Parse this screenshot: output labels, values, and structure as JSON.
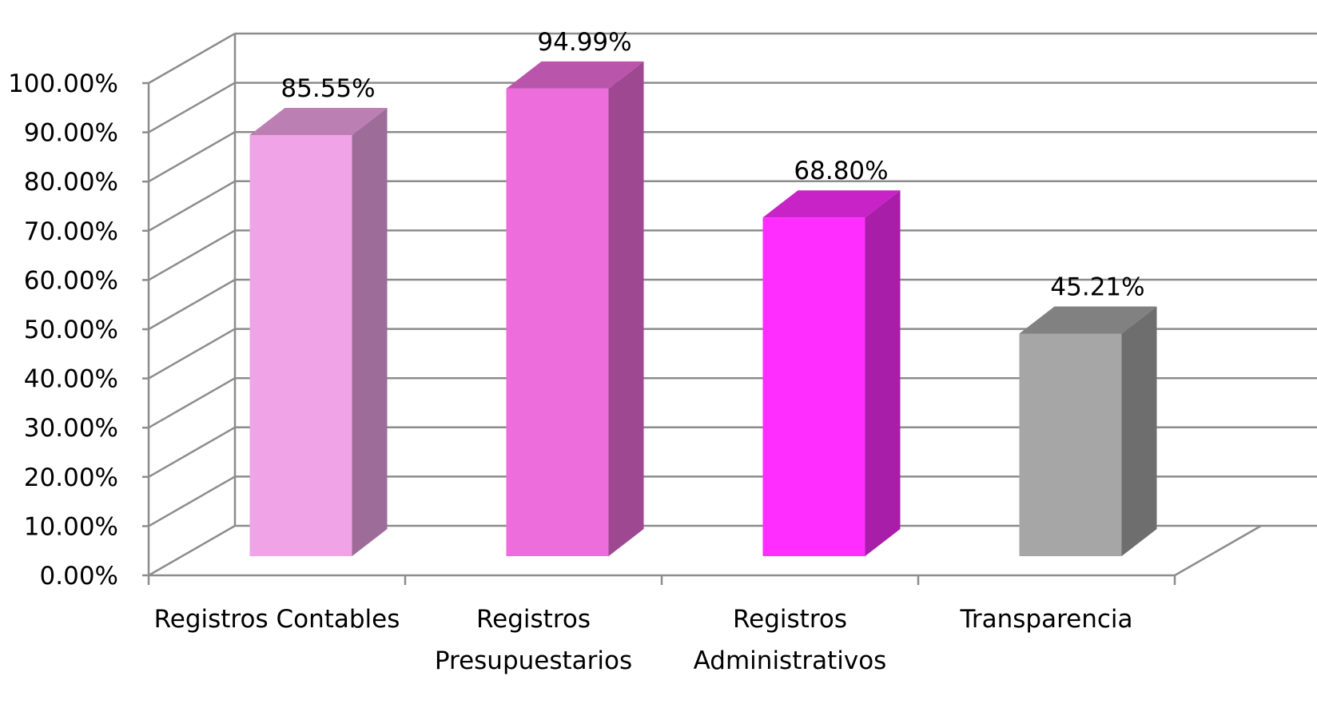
{
  "chart_data": {
    "type": "bar",
    "style": "3d-column",
    "categories": [
      "Registros Contables",
      "Registros Presupuestarios",
      "Registros Administrativos",
      "Transparencia"
    ],
    "category_lines": [
      [
        "Registros Contables"
      ],
      [
        "Registros",
        "Presupuestarios"
      ],
      [
        "Registros",
        "Administrativos"
      ],
      [
        "Transparencia"
      ]
    ],
    "values": [
      85.55,
      94.99,
      68.8,
      45.21
    ],
    "data_labels": [
      "85.55%",
      "94.99%",
      "68.80%",
      "45.21%"
    ],
    "ylim": [
      0,
      100
    ],
    "yticks": [
      "0.00%",
      "10.00%",
      "20.00%",
      "30.00%",
      "40.00%",
      "50.00%",
      "60.00%",
      "70.00%",
      "80.00%",
      "90.00%",
      "100.00%"
    ],
    "grid": true,
    "legend": "none",
    "colors": {
      "bars": [
        "#f0a3e6",
        "#ee6ddc",
        "#ff2dff",
        "#a6a6a6"
      ],
      "grid": "#8c8c8c"
    }
  }
}
